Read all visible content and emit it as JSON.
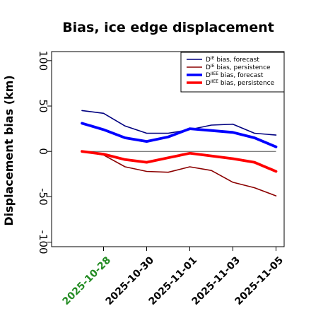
{
  "chart_data": {
    "type": "line",
    "title": "Bias, ice edge displacement",
    "xlabel": "",
    "ylabel": "Displacement bias (km)",
    "ylim": [
      -105,
      110
    ],
    "yticks": [
      -100,
      -50,
      0,
      50,
      100
    ],
    "x": [
      "2025-10-27",
      "2025-10-28",
      "2025-10-29",
      "2025-10-30",
      "2025-10-31",
      "2025-11-01",
      "2025-11-02",
      "2025-11-03",
      "2025-11-04",
      "2025-11-05"
    ],
    "xtick_labels": [
      "2025-10-28",
      "2025-10-30",
      "2025-11-01",
      "2025-11-03",
      "2025-11-05"
    ],
    "xtick_highlight": "2025-10-28",
    "xtick_highlight_color": "#228b22",
    "zero_line": true,
    "grid": false,
    "legend_position": "top-right",
    "series": [
      {
        "name": "D^IE bias, forecast",
        "legend_main": "D",
        "legend_sup": "IE",
        "legend_rest": " bias, forecast",
        "color": "#000080",
        "width": 1.6,
        "values": [
          45,
          42,
          28,
          20,
          20,
          24,
          29,
          30,
          20,
          18
        ]
      },
      {
        "name": "D^IE bias, persistence",
        "legend_main": "D",
        "legend_sup": "IE",
        "legend_rest": " bias, persistence",
        "color": "#8b0000",
        "width": 1.6,
        "values": [
          0,
          -4,
          -17,
          -22,
          -23,
          -17,
          -21,
          -34,
          -40,
          -49
        ]
      },
      {
        "name": "D^IIEE bias, forecast",
        "legend_main": "D",
        "legend_sup": "IIEE",
        "legend_rest": " bias, forecast",
        "color": "#0000ff",
        "width": 3.8,
        "values": [
          31,
          24,
          15,
          11,
          16,
          25,
          23,
          21,
          15,
          5
        ]
      },
      {
        "name": "D^IIEE bias, persistence",
        "legend_main": "D",
        "legend_sup": "IIEE",
        "legend_rest": " bias, persistence",
        "color": "#ff0000",
        "width": 3.8,
        "values": [
          0,
          -3,
          -9,
          -12,
          -7,
          -2,
          -5,
          -8,
          -12,
          -22
        ]
      }
    ]
  }
}
